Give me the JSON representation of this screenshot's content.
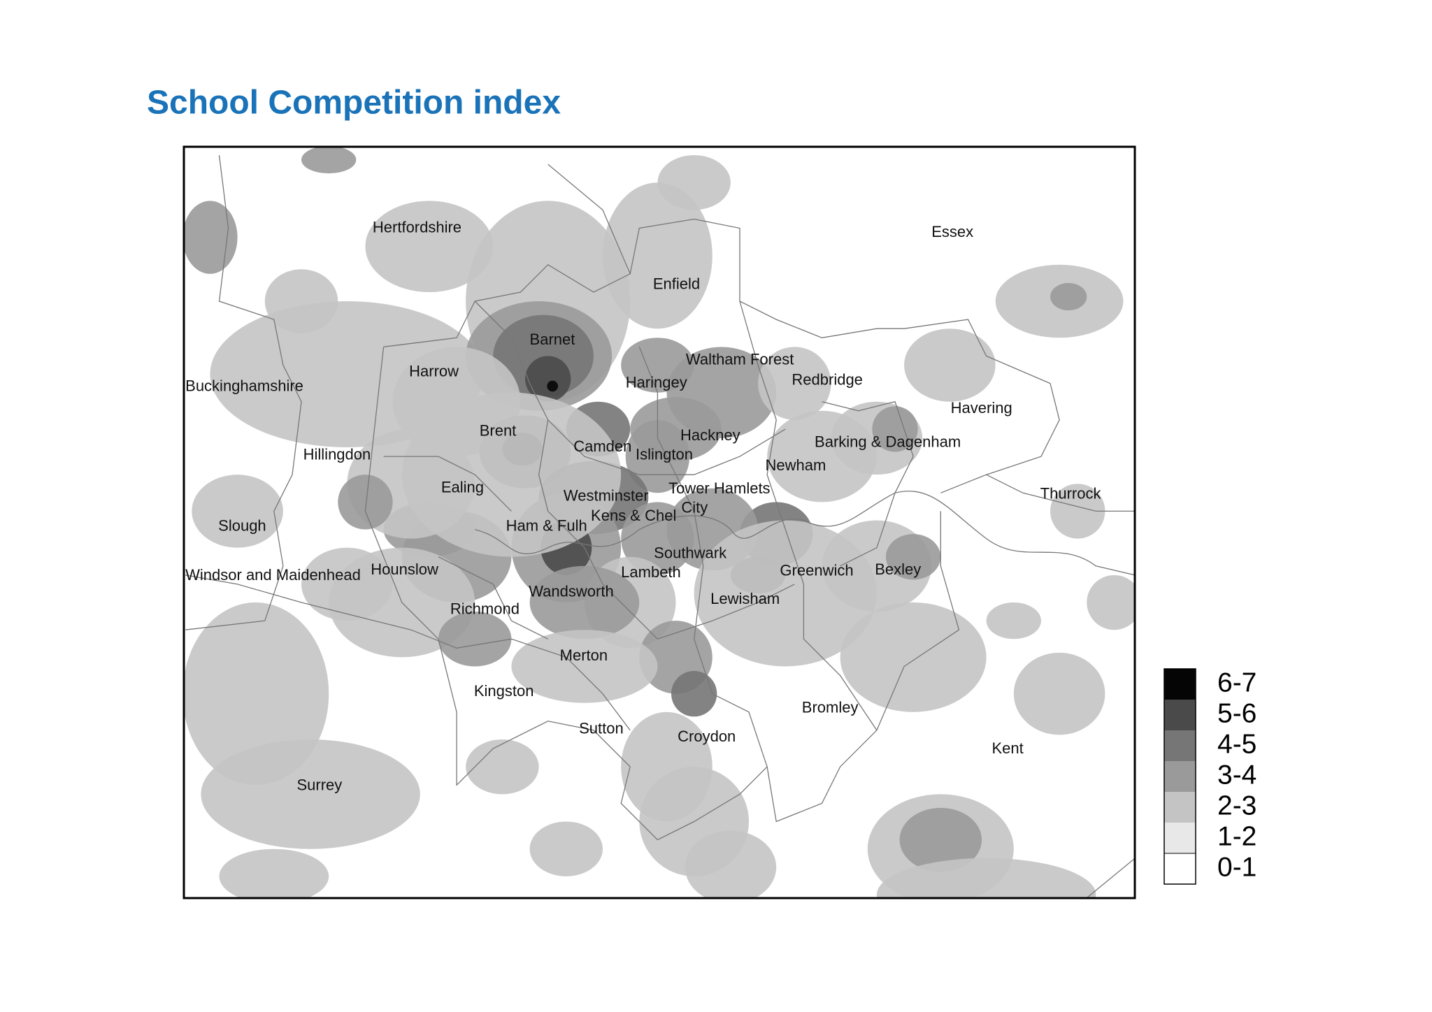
{
  "title": "School Competition index",
  "map": {
    "places": [
      "Hertfordshire",
      "Essex",
      "Enfield",
      "Barnet",
      "Waltham Forest",
      "Harrow",
      "Redbridge",
      "Buckinghamshire",
      "Haringey",
      "Havering",
      "Brent",
      "Hackney",
      "Camden",
      "Islington",
      "Barking & Dagenham",
      "Hillingdon",
      "Newham",
      "Ealing",
      "Tower Hamlets",
      "Westminster",
      "Thurrock",
      "City",
      "Kens & Chel",
      "Slough",
      "Ham & Fulh",
      "Southwark",
      "Hounslow",
      "Greenwich",
      "Bexley",
      "Windsor and Maidenhead",
      "Lambeth",
      "Wandsworth",
      "Lewisham",
      "Richmond",
      "Merton",
      "Kingston",
      "Bromley",
      "Sutton",
      "Croydon",
      "Kent",
      "Surrey"
    ]
  },
  "legend": {
    "entries": [
      {
        "label": "6-7",
        "color": "#050505"
      },
      {
        "label": "5-6",
        "color": "#4a4a4a"
      },
      {
        "label": "4-5",
        "color": "#767676"
      },
      {
        "label": "3-4",
        "color": "#9a9a9a"
      },
      {
        "label": "2-3",
        "color": "#c4c4c4"
      },
      {
        "label": "1-2",
        "color": "#e8e8e8"
      },
      {
        "label": "0-1",
        "color": "#ffffff"
      }
    ]
  }
}
